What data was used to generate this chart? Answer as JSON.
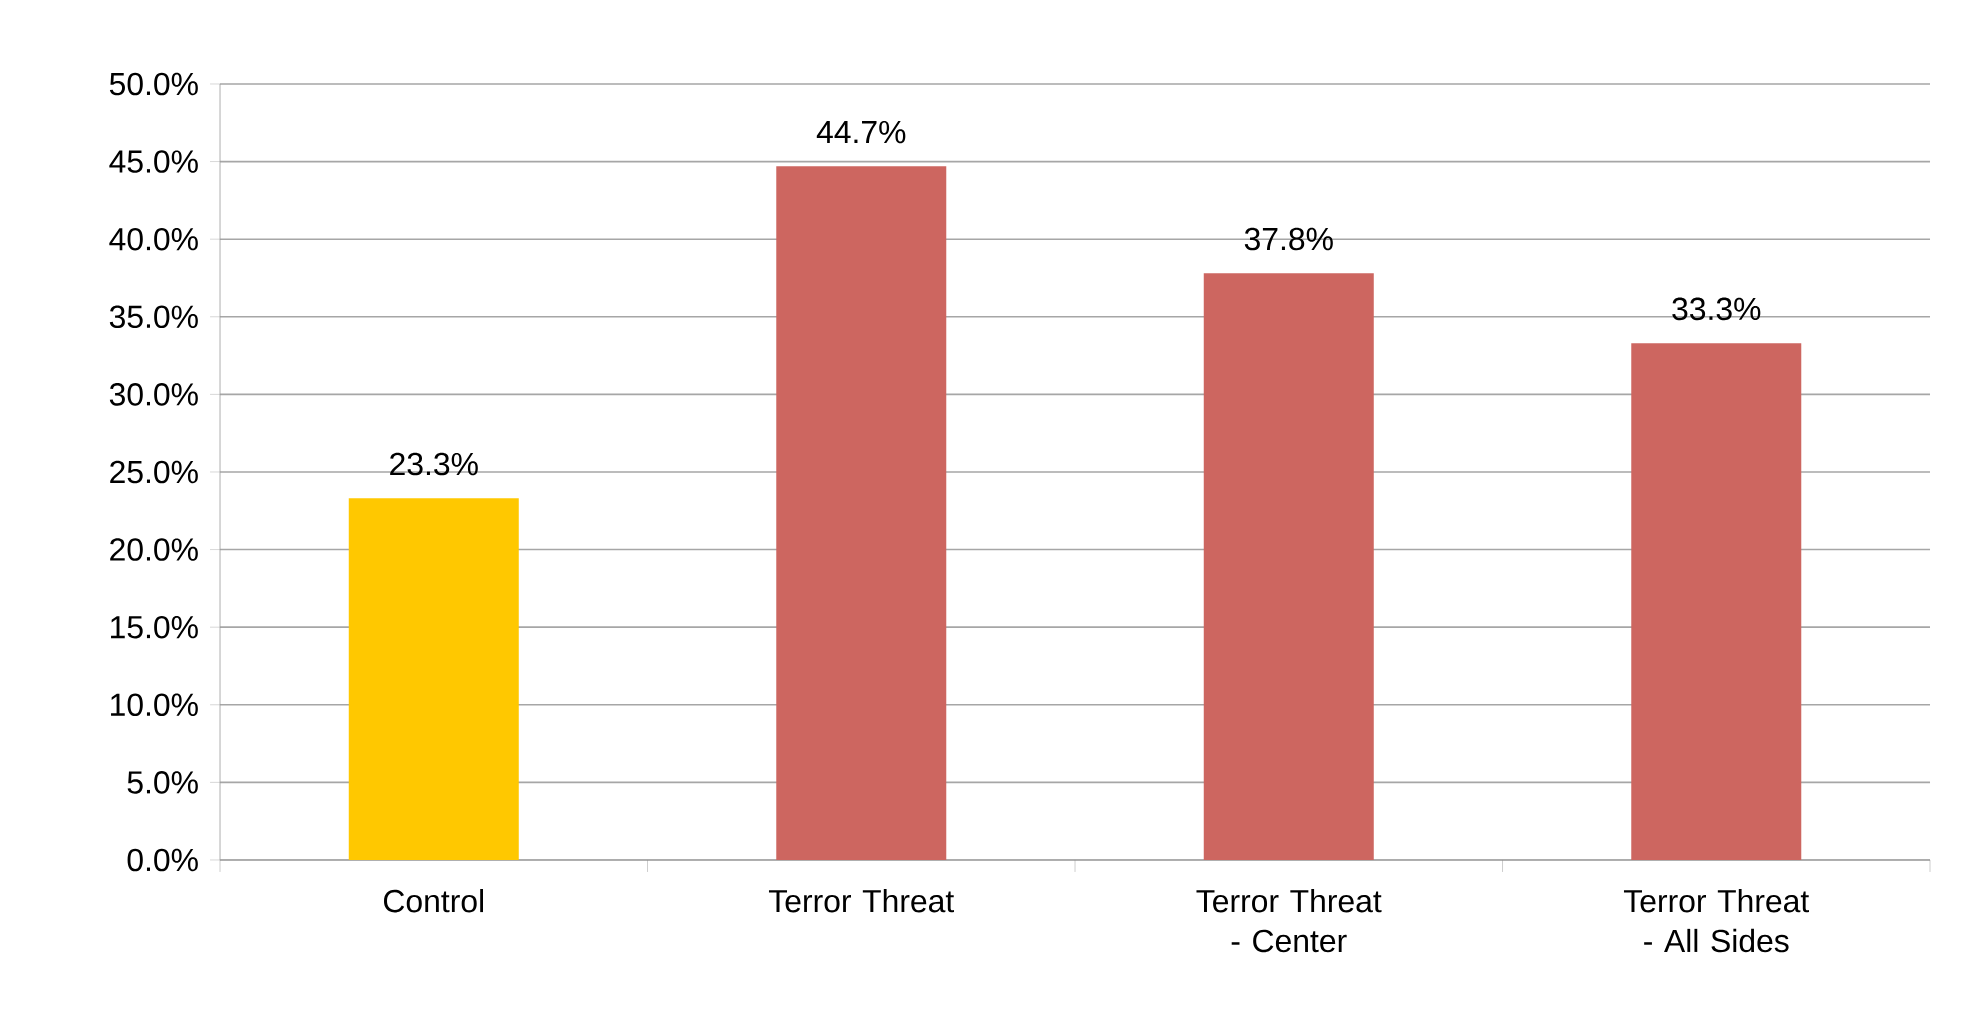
{
  "chart_data": {
    "type": "bar",
    "categories": [
      "Control",
      "Terror Threat",
      "Terror Threat - Center",
      "Terror Threat - All Sides"
    ],
    "values": [
      23.3,
      44.7,
      37.8,
      33.3
    ],
    "colors": [
      "#ffc800",
      "#cd6660",
      "#cd6660",
      "#cd6660"
    ],
    "value_labels": [
      "23.3%",
      "44.7%",
      "37.8%",
      "33.3%"
    ],
    "ylim": [
      0,
      50
    ],
    "yticks": [
      {
        "value": 0,
        "label": "0.0%"
      },
      {
        "value": 5,
        "label": "5.0%"
      },
      {
        "value": 10,
        "label": "10.0%"
      },
      {
        "value": 15,
        "label": "15.0%"
      },
      {
        "value": 20,
        "label": "20.0%"
      },
      {
        "value": 25,
        "label": "25.0%"
      },
      {
        "value": 30,
        "label": "30.0%"
      },
      {
        "value": 35,
        "label": "35.0%"
      },
      {
        "value": 40,
        "label": "40.0%"
      },
      {
        "value": 45,
        "label": "45.0%"
      },
      {
        "value": 50,
        "label": "50.0%"
      }
    ],
    "grid": "y"
  }
}
